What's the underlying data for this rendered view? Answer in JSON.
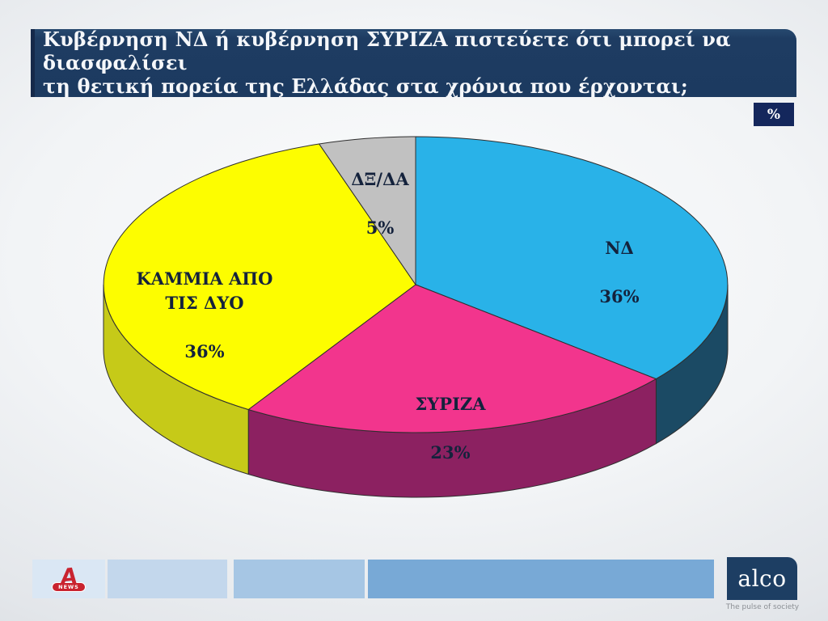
{
  "header": {
    "title": "Κυβέρνηση ΝΔ ή κυβέρνηση ΣΥΡΙΖΑ πιστεύετε ότι μπορεί να διασφαλίσει\nτη θετική πορεία της Ελλάδας στα χρόνια που έρχονται;",
    "unit_badge": "%"
  },
  "chart_data": {
    "type": "pie",
    "style": "3d-pie",
    "title": "Κυβέρνηση ΝΔ ή κυβέρνηση ΣΥΡΙΖΑ πιστεύετε ότι μπορεί να διασφαλίσει τη θετική πορεία της Ελλάδας στα χρόνια που έρχονται;",
    "unit": "%",
    "direction": "clockwise",
    "start_angle_deg": 0,
    "legend": "none",
    "categories": [
      "ΝΔ",
      "ΣΥΡΙΖΑ",
      "ΚΑΜΜΙΑ ΑΠΟ ΤΙΣ ΔΥΟ",
      "ΔΞ/ΔΑ"
    ],
    "values": [
      36,
      23,
      36,
      5
    ],
    "slices": [
      {
        "label": "ΝΔ",
        "display_label": "ΝΔ",
        "value": 36,
        "percent_label": "36%",
        "color": "#29b2e8",
        "side_color": "#1b4a64"
      },
      {
        "label": "ΣΥΡΙΖΑ",
        "display_label": "ΣΥΡΙΖΑ",
        "value": 23,
        "percent_label": "23%",
        "color": "#f2358d",
        "side_color": "#8c2161"
      },
      {
        "label": "ΚΑΜΜΙΑ ΑΠΟ ΤΙΣ ΔΥΟ",
        "display_label": "ΚΑΜΜΙΑ ΑΠΟ\nΤΙΣ ΔΥΟ",
        "value": 36,
        "percent_label": "36%",
        "color": "#fdfd00",
        "side_color": "#c6ca18"
      },
      {
        "label": "ΔΞ/ΔΑ",
        "display_label": "ΔΞ/ΔΑ",
        "value": 5,
        "percent_label": "5%",
        "color": "#c1c1c1",
        "side_color": "#9a9a9a"
      }
    ]
  },
  "footer": {
    "alpha_news": {
      "letter": "A",
      "badge": "NEWS"
    },
    "alco": {
      "logo_text": "alco",
      "tagline": "The pulse of society"
    }
  },
  "colors": {
    "title_bar_navy": "#1d3c63",
    "badge_navy": "#14275c",
    "label_text": "#14223c",
    "alpha_red": "#c9232f",
    "alco_navy": "#1d3e63",
    "footer_blue_light": "#c3d7ec",
    "footer_blue_medium": "#78a9d6"
  }
}
